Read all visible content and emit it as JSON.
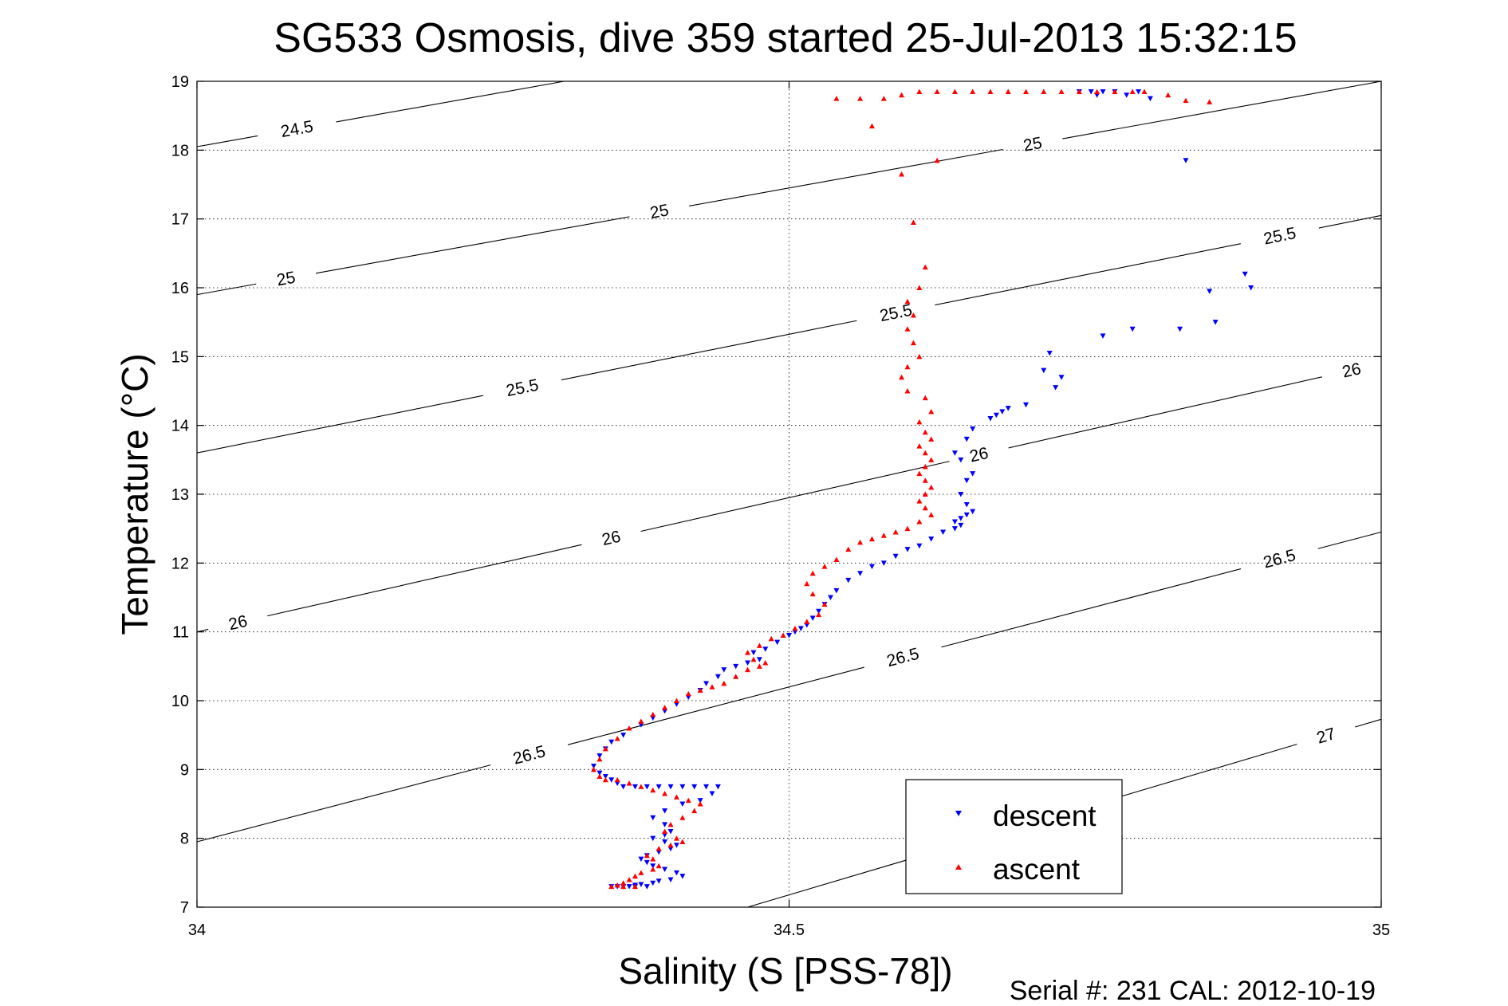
{
  "chart_data": {
    "type": "scatter",
    "title": "SG533 Osmosis, dive 359 started 25-Jul-2013 15:32:15",
    "xlabel": "Salinity (S [PSS-78])",
    "ylabel": "Temperature (°C)",
    "xlim": [
      34,
      35
    ],
    "ylim": [
      7,
      19
    ],
    "xticks": [
      34,
      34.5,
      35
    ],
    "xtick_labels": [
      "34",
      "34.5",
      "35"
    ],
    "yticks": [
      7,
      8,
      9,
      10,
      11,
      12,
      13,
      14,
      15,
      16,
      17,
      18,
      19
    ],
    "ytick_labels": [
      "7",
      "8",
      "9",
      "10",
      "11",
      "12",
      "13",
      "14",
      "15",
      "16",
      "17",
      "18",
      "19"
    ],
    "grid": true,
    "legend_position": "bottom-right",
    "footer": "Serial #: 231  CAL: 2012-10-19",
    "density_contours": [
      {
        "label": "24.5",
        "points": [
          [
            34,
            18.05
          ],
          [
            34.31,
            19
          ]
        ],
        "label_at": [
          [
            34.085,
            18.25
          ]
        ]
      },
      {
        "label": "25",
        "points": [
          [
            34,
            15.9
          ],
          [
            35,
            19.0
          ]
        ],
        "label_at": [
          [
            34.075,
            16.15
          ],
          [
            34.39,
            17.15
          ],
          [
            34.705,
            18.15
          ]
        ]
      },
      {
        "label": "25.5",
        "points": [
          [
            34,
            13.6
          ],
          [
            35,
            17.05
          ]
        ],
        "label_at": [
          [
            34.27,
            14.95
          ],
          [
            34.59,
            15.65
          ],
          [
            34.915,
            16.7
          ]
        ]
      },
      {
        "label": "26",
        "points": [
          [
            34,
            11.0
          ],
          [
            35,
            14.9
          ]
        ],
        "label_at": [
          [
            34.035,
            11.1
          ],
          [
            34.35,
            12.35
          ],
          [
            34.66,
            13.6
          ],
          [
            34.975,
            14.8
          ]
        ]
      },
      {
        "label": "26.5",
        "points": [
          [
            34,
            7.95
          ],
          [
            35,
            12.45
          ]
        ],
        "label_at": [
          [
            34.28,
            9.25
          ],
          [
            34.595,
            10.7
          ],
          [
            34.915,
            12.0
          ]
        ]
      },
      {
        "label": "27",
        "points": [
          [
            34.465,
            7.0
          ],
          [
            35,
            9.73
          ]
        ],
        "label_at": [
          [
            34.955,
            9.4
          ]
        ]
      }
    ],
    "series": [
      {
        "name": "descent",
        "color": "#0000ff",
        "marker": "triangle-down",
        "x": [
          34.745,
          34.755,
          34.765,
          34.775,
          34.785,
          34.795,
          34.835,
          34.76,
          34.805,
          34.885,
          34.89,
          34.855,
          34.86,
          34.83,
          34.79,
          34.765,
          34.72,
          34.715,
          34.73,
          34.725,
          34.7,
          34.685,
          34.68,
          34.675,
          34.67,
          34.655,
          34.65,
          34.64,
          34.645,
          34.655,
          34.65,
          34.645,
          34.65,
          34.655,
          34.65,
          34.645,
          34.64,
          34.645,
          34.64,
          34.63,
          34.62,
          34.61,
          34.6,
          34.59,
          34.58,
          34.57,
          34.56,
          34.55,
          34.54,
          34.535,
          34.53,
          34.525,
          34.52,
          34.515,
          34.51,
          34.505,
          34.5,
          34.49,
          34.48,
          34.47,
          34.475,
          34.465,
          34.455,
          34.445,
          34.44,
          34.43,
          34.425,
          34.415,
          34.405,
          34.395,
          34.385,
          34.375,
          34.36,
          34.35,
          34.345,
          34.34,
          34.335,
          34.34,
          34.345,
          34.35,
          34.355,
          34.36,
          34.37,
          34.38,
          34.39,
          34.4,
          34.41,
          34.42,
          34.43,
          34.44,
          34.435,
          34.425,
          34.41,
          34.395,
          34.385,
          34.395,
          34.4,
          34.395,
          34.385,
          34.395,
          34.405,
          34.4,
          34.39,
          34.38,
          34.375,
          34.38,
          34.385,
          34.395,
          34.405,
          34.41,
          34.4,
          34.39,
          34.385,
          34.375,
          34.37,
          34.365,
          34.36,
          34.355,
          34.35,
          34.36,
          34.37,
          34.38
        ],
        "y": [
          18.85,
          18.85,
          18.85,
          18.85,
          18.8,
          18.85,
          17.85,
          18.8,
          18.75,
          16.2,
          16.0,
          15.95,
          15.5,
          15.4,
          15.4,
          15.3,
          15.05,
          14.8,
          14.7,
          14.55,
          14.3,
          14.25,
          14.2,
          14.15,
          14.1,
          13.95,
          13.8,
          13.6,
          13.5,
          13.3,
          13.2,
          13.0,
          12.85,
          12.75,
          12.7,
          12.65,
          12.6,
          12.55,
          12.5,
          12.45,
          12.35,
          12.25,
          12.2,
          12.1,
          12.0,
          11.95,
          11.85,
          11.75,
          11.6,
          11.5,
          11.4,
          11.3,
          11.2,
          11.1,
          11.05,
          11.0,
          10.95,
          10.85,
          10.75,
          10.7,
          10.6,
          10.55,
          10.5,
          10.45,
          10.35,
          10.25,
          10.15,
          10.05,
          9.95,
          9.85,
          9.75,
          9.65,
          9.5,
          9.4,
          9.3,
          9.2,
          9.05,
          8.95,
          8.9,
          8.85,
          8.8,
          8.75,
          8.75,
          8.75,
          8.75,
          8.75,
          8.75,
          8.75,
          8.75,
          8.75,
          8.65,
          8.55,
          8.5,
          8.4,
          8.3,
          8.2,
          8.1,
          8.05,
          8.0,
          7.95,
          7.9,
          7.85,
          7.8,
          7.75,
          7.7,
          7.65,
          7.6,
          7.55,
          7.5,
          7.45,
          7.4,
          7.38,
          7.35,
          7.33,
          7.32,
          7.3,
          7.3,
          7.3,
          7.3,
          7.3,
          7.3,
          7.3
        ]
      },
      {
        "name": "ascent",
        "color": "#ff0000",
        "marker": "triangle-up",
        "x": [
          34.855,
          34.835,
          34.82,
          34.8,
          34.79,
          34.775,
          34.76,
          34.745,
          34.73,
          34.715,
          34.7,
          34.685,
          34.67,
          34.655,
          34.64,
          34.625,
          34.61,
          34.595,
          34.58,
          34.56,
          34.54,
          34.625,
          34.57,
          34.595,
          34.605,
          34.615,
          34.61,
          34.6,
          34.605,
          34.6,
          34.605,
          34.61,
          34.6,
          34.595,
          34.6,
          34.615,
          34.62,
          34.61,
          34.615,
          34.62,
          34.61,
          34.615,
          34.62,
          34.615,
          34.61,
          34.615,
          34.62,
          34.615,
          34.61,
          34.615,
          34.62,
          34.61,
          34.6,
          34.59,
          34.58,
          34.57,
          34.56,
          34.55,
          34.54,
          34.53,
          34.52,
          34.515,
          34.52,
          34.53,
          34.525,
          34.515,
          34.505,
          34.495,
          34.485,
          34.475,
          34.465,
          34.47,
          34.48,
          34.475,
          34.465,
          34.455,
          34.445,
          34.435,
          34.425,
          34.415,
          34.405,
          34.395,
          34.385,
          34.375,
          34.365,
          34.355,
          34.345,
          34.34,
          34.335,
          34.34,
          34.345,
          34.355,
          34.365,
          34.375,
          34.385,
          34.395,
          34.405,
          34.415,
          34.425,
          34.42,
          34.41,
          34.4,
          34.395,
          34.405,
          34.41,
          34.4,
          34.39,
          34.38,
          34.385,
          34.39,
          34.385,
          34.375,
          34.37,
          34.365,
          34.36,
          34.355,
          34.35,
          34.36,
          34.37
        ],
        "y": [
          18.7,
          18.72,
          18.8,
          18.85,
          18.85,
          18.85,
          18.85,
          18.85,
          18.85,
          18.85,
          18.85,
          18.85,
          18.85,
          18.85,
          18.85,
          18.85,
          18.85,
          18.8,
          18.75,
          18.75,
          18.75,
          17.85,
          18.35,
          17.65,
          16.95,
          16.3,
          16.0,
          15.8,
          15.6,
          15.4,
          15.2,
          15.0,
          14.85,
          14.7,
          14.5,
          14.4,
          14.2,
          14.05,
          13.9,
          13.8,
          13.7,
          13.6,
          13.5,
          13.4,
          13.3,
          13.2,
          13.1,
          13.0,
          12.9,
          12.8,
          12.7,
          12.6,
          12.5,
          12.45,
          12.4,
          12.35,
          12.3,
          12.2,
          12.05,
          11.95,
          11.85,
          11.7,
          11.55,
          11.4,
          11.25,
          11.15,
          11.05,
          10.95,
          10.9,
          10.8,
          10.7,
          10.6,
          10.55,
          10.5,
          10.45,
          10.35,
          10.25,
          10.2,
          10.15,
          10.1,
          10.0,
          9.9,
          9.8,
          9.7,
          9.6,
          9.45,
          9.3,
          9.15,
          9.0,
          8.9,
          8.85,
          8.85,
          8.8,
          8.75,
          8.7,
          8.65,
          8.6,
          8.55,
          8.5,
          8.4,
          8.3,
          8.2,
          8.1,
          8.0,
          7.95,
          7.9,
          7.85,
          7.75,
          7.7,
          7.6,
          7.55,
          7.5,
          7.45,
          7.4,
          7.35,
          7.32,
          7.3,
          7.3,
          7.3
        ]
      }
    ]
  }
}
